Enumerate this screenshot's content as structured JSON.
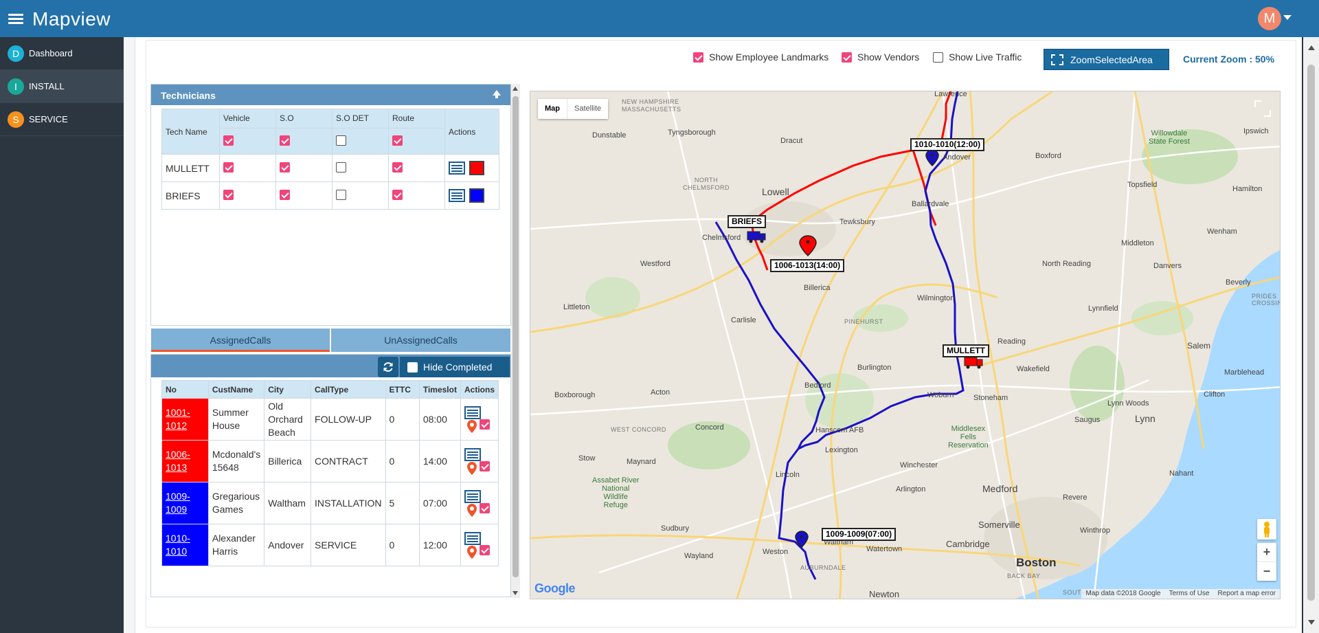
{
  "app": {
    "title": "Mapview",
    "avatar_initial": "M"
  },
  "sidebar": {
    "items": [
      {
        "initial": "D",
        "label": "Dashboard",
        "color": "#1cb1d6"
      },
      {
        "initial": "I",
        "label": "INSTALL",
        "color": "#1aa89a"
      },
      {
        "initial": "S",
        "label": "SERVICE",
        "color": "#f5921e"
      }
    ]
  },
  "toolbar": {
    "show_employee_landmarks": {
      "label": "Show Employee Landmarks",
      "checked": true
    },
    "show_vendors": {
      "label": "Show Vendors",
      "checked": true
    },
    "show_live_traffic": {
      "label": "Show Live Traffic",
      "checked": false
    },
    "zoom_button": "ZoomSelectedArea",
    "current_zoom": "Current Zoom : 50%"
  },
  "technicians": {
    "title": "Technicians",
    "columns": [
      "Tech Name",
      "Vehicle",
      "S.O",
      "S.O DET",
      "Route",
      "Actions"
    ],
    "rows": [
      {
        "name": "MULLETT",
        "vehicle": true,
        "so": true,
        "so_det": false,
        "route": true,
        "color": "#ff0000"
      },
      {
        "name": "BRIEFS",
        "vehicle": true,
        "so": true,
        "so_det": false,
        "route": true,
        "color": "#0000ff"
      }
    ]
  },
  "calls": {
    "tabs": [
      "AssignedCalls",
      "UnAssignedCalls"
    ],
    "hide_completed": "Hide Completed",
    "columns": [
      "No",
      "CustName",
      "City",
      "CallType",
      "ETTC",
      "Timeslot",
      "Actions"
    ],
    "rows": [
      {
        "no": "1001-1012",
        "cust": "Summer House",
        "city": "Old Orchard Beach",
        "type": "FOLLOW-UP",
        "ettc": "0",
        "timeslot": "08:00",
        "color": "red"
      },
      {
        "no": "1006-1013",
        "cust": "Mcdonald's 15648",
        "city": "Billerica",
        "type": "CONTRACT",
        "ettc": "0",
        "timeslot": "14:00",
        "color": "red"
      },
      {
        "no": "1009-1009",
        "cust": "Gregarious Games",
        "city": "Waltham",
        "type": "INSTALLATION",
        "ettc": "5",
        "timeslot": "07:00",
        "color": "blue"
      },
      {
        "no": "1010-1010",
        "cust": "Alexander Harris",
        "city": "Andover",
        "type": "SERVICE",
        "ettc": "0",
        "timeslot": "12:00",
        "color": "blue"
      }
    ]
  },
  "map": {
    "type_map": "Map",
    "type_satellite": "Satellite",
    "footer": [
      "Map data ©2018 Google",
      "Terms of Use",
      "Report a map error"
    ],
    "google_logo": "Google",
    "markers": {
      "briefs": "BRIEFS",
      "mullett": "MULLETT",
      "m1006": "1006-1013(14:00)",
      "m1010": "1010-1010(12:00)",
      "m1009": "1009-1009(07:00)"
    },
    "towns": {
      "lawrence": "Lawrence",
      "nh_mass": "NEW HAMPSHIRE\nMASSACHUSETTS",
      "tyngsborough": "Tyngsborough",
      "dunstable": "Dunstable",
      "dracut": "Dracut",
      "north_chelmsford": "NORTH\nCHELMSFORD",
      "lowell": "Lowell",
      "chelmsford": "Chelmsford",
      "tewksbury": "Tewksbury",
      "ballardvale": "Ballardvale",
      "andover": "Andover",
      "boxford": "Boxford",
      "willowdale": "Willowdale\nState Forest",
      "ipswich": "Ipswich",
      "topsfield": "Topsfield",
      "hamilton": "Hamilton",
      "wenham": "Wenham",
      "middleton": "Middleton",
      "danvers": "Danvers",
      "beverly": "Beverly",
      "prides_crossing": "PRIDES\nCROSSING",
      "north_reading": "North Reading",
      "westford": "Westford",
      "billerica": "Billerica",
      "wilmington": "Wilmington",
      "littleton": "Littleton",
      "lynnfield": "Lynnfield",
      "pinehurst": "PINEHURST",
      "carlisle": "Carlisle",
      "reading": "Reading",
      "salem": "Salem",
      "marblehead": "Marblehead",
      "wakefield": "Wakefield",
      "burlington": "Burlington",
      "boxborough": "Boxborough",
      "acton": "Acton",
      "bedford": "Bedford",
      "woburn": "Woburn",
      "stoneham": "Stoneham",
      "lynn_woods": "Lynn Woods",
      "clifton": "Clifton",
      "lynn": "Lynn",
      "saugus": "Saugus",
      "west_concord": "WEST CONCORD",
      "concord": "Concord",
      "hanscom": "Hanscom AFB",
      "middlesex_fells": "Middlesex\nFells\nReservation",
      "lexington": "Lexington",
      "stow": "Stow",
      "maynard": "Maynard",
      "winchester": "Winchester",
      "nahant": "Nahant",
      "lincoln": "Lincoln",
      "assabet": "Assabet River\nNational\nWildlife\nRefuge",
      "arlington": "Arlington",
      "medford": "Medford",
      "revere": "Revere",
      "sudbury": "Sudbury",
      "somerville": "Somerville",
      "winthrop": "Winthrop",
      "cambridge": "Cambridge",
      "wayland": "Wayland",
      "weston": "Weston",
      "waltham": "Waltham",
      "watertown": "Watertown",
      "boston": "Boston",
      "auburndale": "AUBURNDALE",
      "back_bay": "BACK BAY",
      "newton": "Newton",
      "south_boston": "SOUTH BOSTON"
    }
  }
}
